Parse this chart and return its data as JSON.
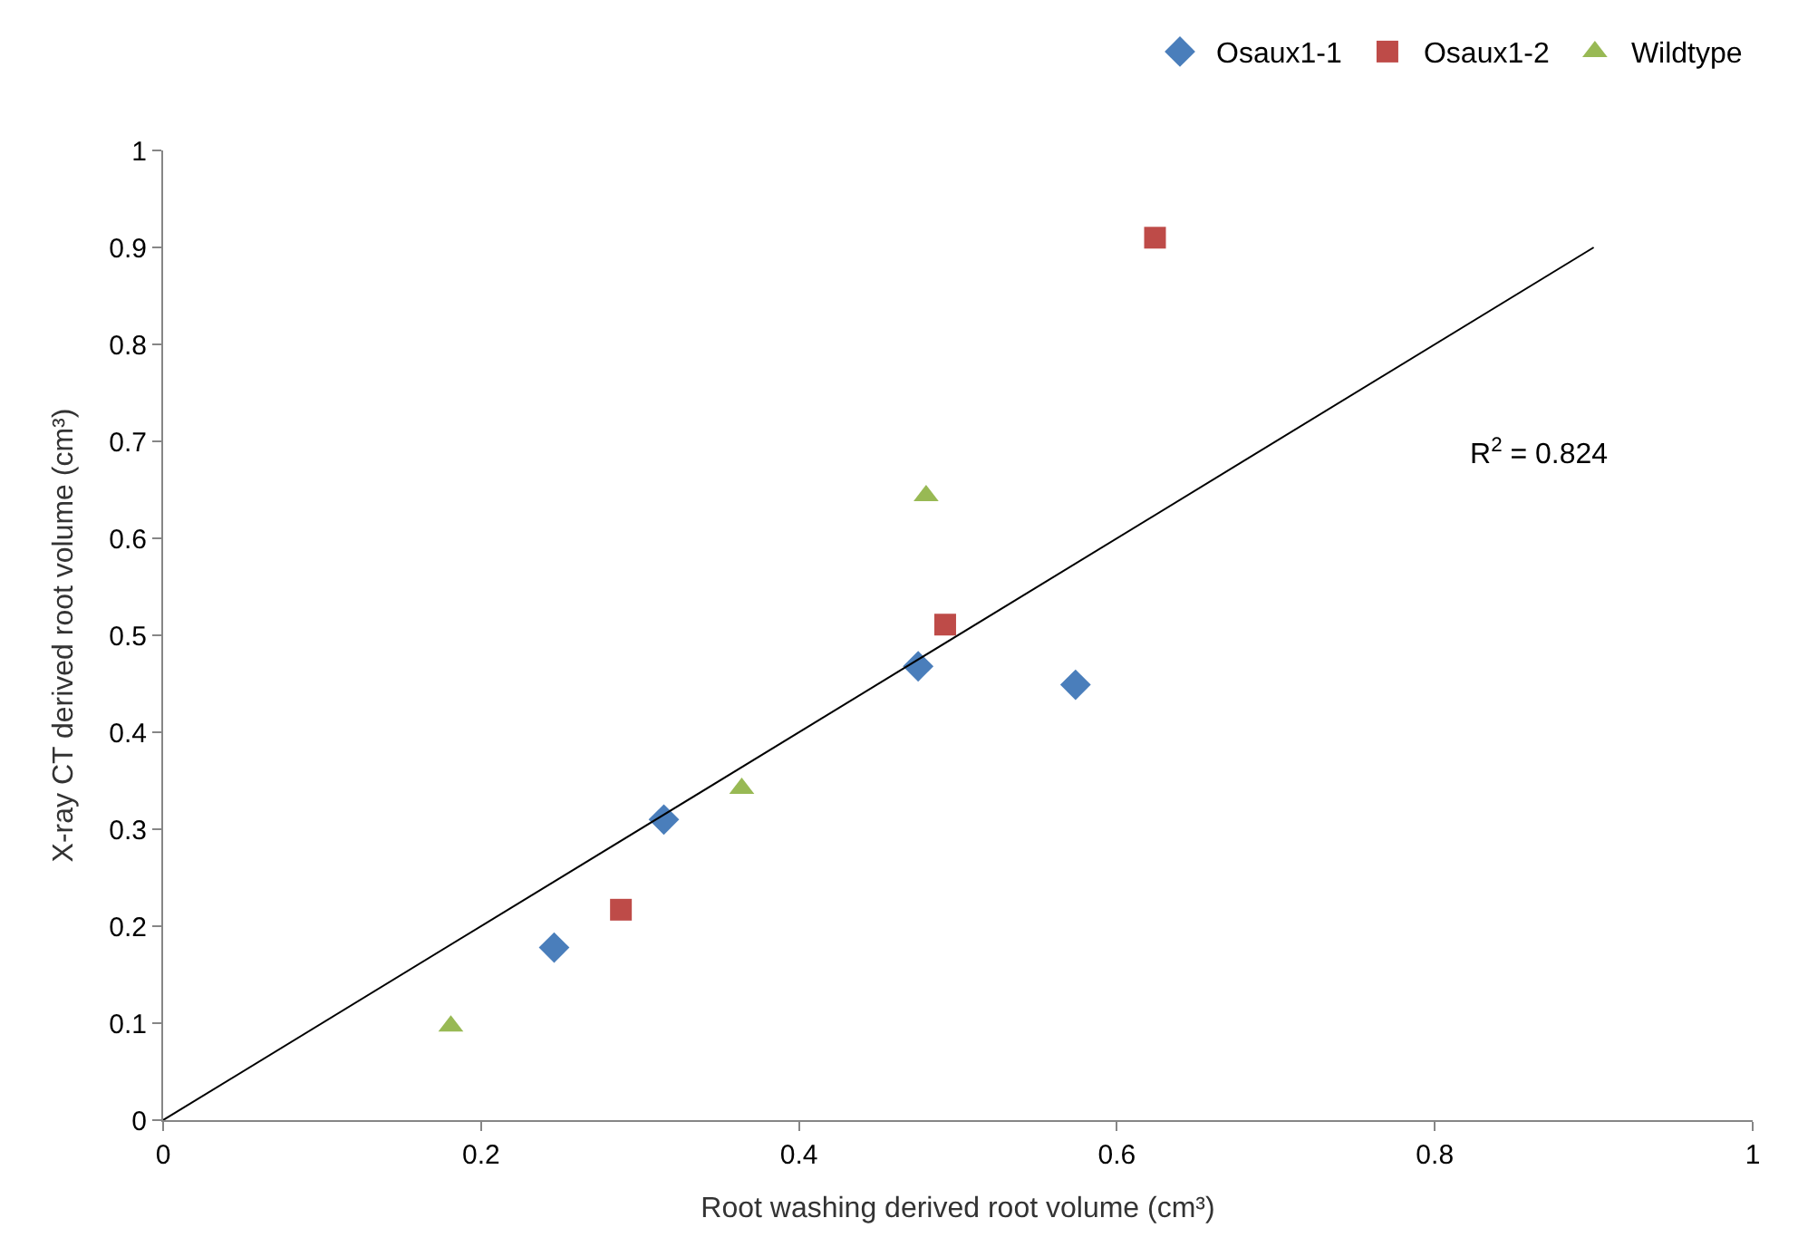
{
  "chart_data": {
    "type": "scatter",
    "xlabel": "Root washing derived root volume (cm³)",
    "ylabel": "X-ray CT derived root volume (cm³)",
    "annotations": [
      "R$^{2}$ = 0.824"
    ],
    "series": [
      {
        "name": "Osaux1-1",
        "color": "#4a7ebb",
        "marker": "diamond",
        "x": [
          0.246,
          0.315,
          0.475,
          0.574
        ],
        "values": [
          0.178,
          0.31,
          0.468,
          0.449
        ]
      },
      {
        "name": "Osaux1-2",
        "color": "#be4b48",
        "marker": "square",
        "x": [
          0.288,
          0.492,
          0.624
        ],
        "values": [
          0.217,
          0.511,
          0.91
        ]
      },
      {
        "name": "Wildtype",
        "color": "#98b954",
        "marker": "triangle",
        "x": [
          0.181,
          0.364,
          0.48
        ],
        "values": [
          0.097,
          0.342,
          0.644
        ]
      },
      {
        "type": "line",
        "color": "#000000",
        "marker": "none",
        "x": [
          0,
          0.9
        ],
        "values": [
          0,
          0.9
        ]
      }
    ],
    "xlim": [
      0,
      1
    ],
    "xticks": [
      0,
      0.2,
      0.4,
      0.6,
      0.8,
      1
    ],
    "ylim": [
      0,
      1
    ],
    "yticks": [
      0,
      0.1,
      0.2,
      0.3,
      0.4,
      0.5,
      0.6,
      0.7,
      0.8,
      0.9,
      1
    ],
    "legend": "top right"
  }
}
